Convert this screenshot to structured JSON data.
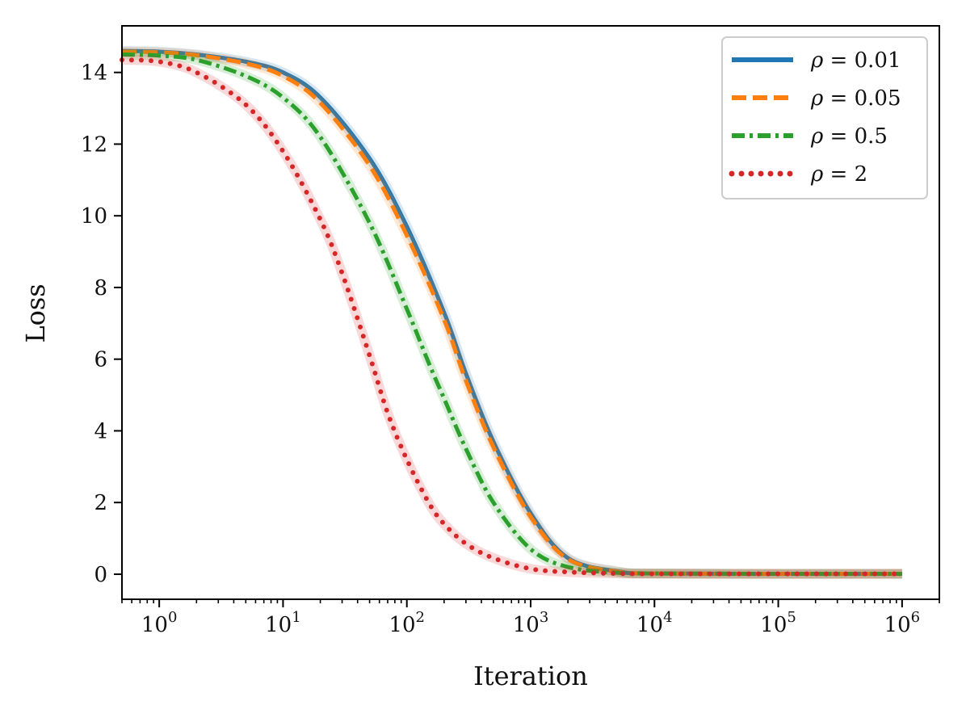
{
  "chart_data": {
    "type": "line",
    "title": "",
    "xlabel": "Iteration",
    "ylabel": "Loss",
    "xscale": "log",
    "xlim": [
      0.5,
      2000000
    ],
    "ylim": [
      -0.7,
      15.3
    ],
    "x_ticks": [
      {
        "value": 1,
        "base": "10",
        "exp": "0"
      },
      {
        "value": 10,
        "base": "10",
        "exp": "1"
      },
      {
        "value": 100,
        "base": "10",
        "exp": "2"
      },
      {
        "value": 1000,
        "base": "10",
        "exp": "3"
      },
      {
        "value": 10000,
        "base": "10",
        "exp": "4"
      },
      {
        "value": 100000,
        "base": "10",
        "exp": "5"
      },
      {
        "value": 1000000,
        "base": "10",
        "exp": "6"
      }
    ],
    "y_ticks": [
      {
        "value": 0,
        "label": "0"
      },
      {
        "value": 2,
        "label": "2"
      },
      {
        "value": 4,
        "label": "4"
      },
      {
        "value": 6,
        "label": "6"
      },
      {
        "value": 8,
        "label": "8"
      },
      {
        "value": 10,
        "label": "10"
      },
      {
        "value": 12,
        "label": "12"
      },
      {
        "value": 14,
        "label": "14"
      }
    ],
    "legend_position": "top-right",
    "series": [
      {
        "name": "ρ = 0.01",
        "sym": "ρ",
        "rest": " = 0.01",
        "color": "#1f77b4",
        "style": "solid",
        "x": [
          0.5,
          1,
          2,
          5,
          10,
          20,
          50,
          100,
          200,
          300,
          500,
          1000,
          2000,
          5000,
          10000,
          100000,
          1000000
        ],
        "values": [
          14.6,
          14.58,
          14.5,
          14.3,
          14.0,
          13.3,
          11.6,
          9.7,
          7.3,
          5.6,
          3.7,
          1.7,
          0.45,
          0.08,
          0.02,
          0.01,
          0.01
        ]
      },
      {
        "name": "ρ = 0.05",
        "sym": "ρ",
        "rest": " = 0.05",
        "color": "#ff7f0e",
        "style": "dashed",
        "x": [
          0.5,
          1,
          2,
          5,
          10,
          20,
          50,
          100,
          200,
          300,
          500,
          1000,
          2000,
          5000,
          10000,
          100000,
          1000000
        ],
        "values": [
          14.58,
          14.56,
          14.48,
          14.25,
          13.9,
          13.15,
          11.4,
          9.45,
          7.1,
          5.4,
          3.55,
          1.6,
          0.42,
          0.07,
          0.02,
          0.01,
          0.01
        ]
      },
      {
        "name": "ρ = 0.5",
        "sym": "ρ",
        "rest": " = 0.5",
        "color": "#2ca02c",
        "style": "dashdot",
        "x": [
          0.5,
          1,
          2,
          5,
          10,
          20,
          50,
          100,
          150,
          200,
          300,
          500,
          1000,
          2000,
          5000,
          10000,
          100000,
          1000000
        ],
        "values": [
          14.5,
          14.47,
          14.35,
          13.9,
          13.3,
          12.2,
          9.8,
          7.4,
          5.9,
          4.9,
          3.5,
          2.0,
          0.7,
          0.2,
          0.04,
          0.02,
          0.01,
          0.01
        ]
      },
      {
        "name": "ρ = 2",
        "sym": "ρ",
        "rest": " = 2",
        "color": "#d62728",
        "style": "dotted",
        "x": [
          0.5,
          1,
          2,
          5,
          10,
          20,
          30,
          50,
          70,
          100,
          150,
          200,
          300,
          500,
          1000,
          2000,
          5000,
          10000,
          100000,
          1000000
        ],
        "values": [
          14.35,
          14.3,
          14.0,
          13.1,
          11.8,
          9.9,
          8.4,
          6.1,
          4.5,
          3.2,
          2.0,
          1.4,
          0.85,
          0.45,
          0.15,
          0.06,
          0.02,
          0.01,
          0.01,
          0.01
        ]
      }
    ]
  }
}
